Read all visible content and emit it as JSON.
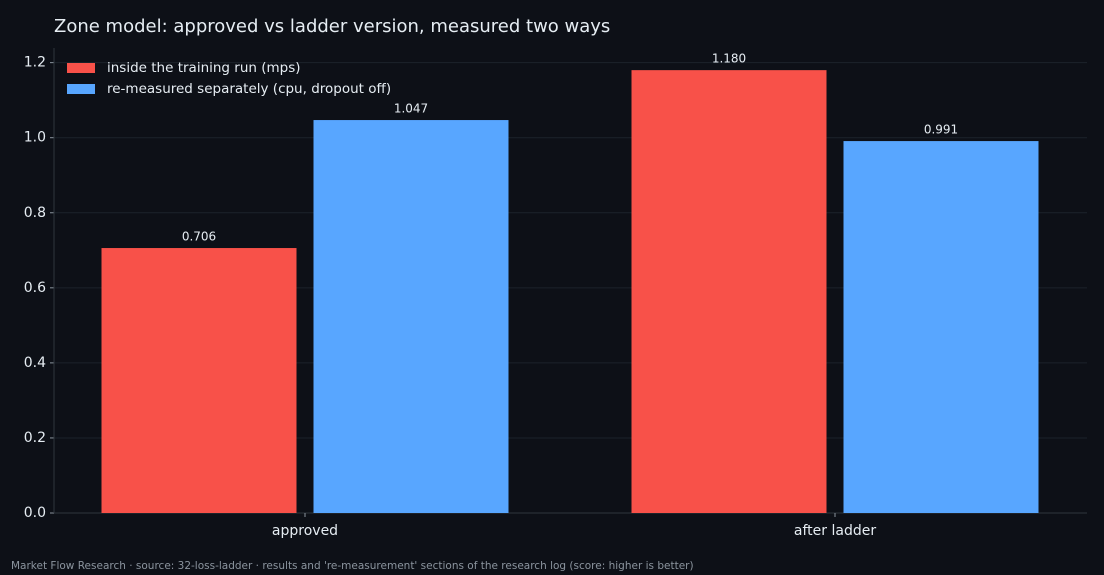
{
  "chart_data": {
    "type": "grouped_bar",
    "title": "Zone model: approved vs ladder version, measured two ways",
    "categories": [
      "approved",
      "after ladder"
    ],
    "series": [
      {
        "name": "inside the training run (mps)",
        "color": "#f85149",
        "values": [
          0.706,
          1.18
        ],
        "value_labels": [
          "0.706",
          "1.180"
        ]
      },
      {
        "name": "re-measured separately (cpu, dropout off)",
        "color": "#58a6ff",
        "values": [
          1.047,
          0.991
        ],
        "value_labels": [
          "1.047",
          "0.991"
        ]
      }
    ],
    "ylim": [
      0,
      1.239
    ],
    "yticks": [
      {
        "value": 0,
        "label": "0.0"
      },
      {
        "value": 0.2,
        "label": "0.2"
      },
      {
        "value": 0.4,
        "label": "0.4"
      },
      {
        "value": 0.6,
        "label": "0.6"
      },
      {
        "value": 0.8,
        "label": "0.8"
      },
      {
        "value": 1,
        "label": "1.0"
      },
      {
        "value": 1.2,
        "label": "1.2"
      }
    ],
    "grid": true,
    "legend": "upper left",
    "footer": "Market Flow Research · source: 32-loss-ladder · results and 're-measurement' sections of the research log (score: higher is better)"
  }
}
